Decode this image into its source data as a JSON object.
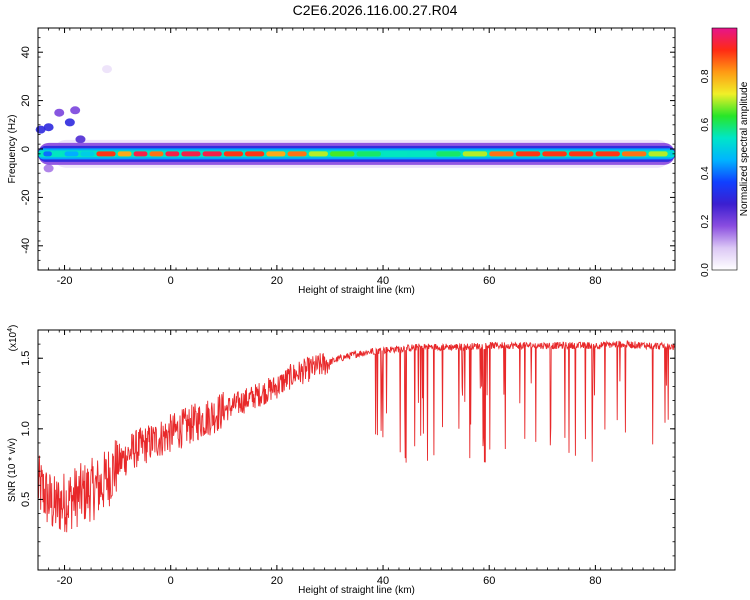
{
  "title": "C2E6.2026.116.00.27.R04",
  "chart_data": [
    {
      "type": "heatmap",
      "xlabel": "Height of straight line (km)",
      "ylabel": "Frequency (Hz)",
      "xlim": [
        -25,
        95
      ],
      "ylim": [
        -50,
        50
      ],
      "xticks": [
        -20,
        0,
        20,
        40,
        60,
        80
      ],
      "yticks": [
        -40,
        -20,
        0,
        20,
        40
      ],
      "colorbar": {
        "label": "Normalized spectral amplitude",
        "range": [
          0,
          1
        ],
        "ticks": [
          "0.0",
          "0.2",
          "0.4",
          "0.6",
          "0.8"
        ],
        "tick_values": [
          0,
          0.2,
          0.4,
          0.6,
          0.8
        ],
        "colors": [
          "#ffffff",
          "#dcc8f5",
          "#8a4de0",
          "#3b1fd0",
          "#1040ff",
          "#00b4ff",
          "#00e6c8",
          "#28e628",
          "#f0f028",
          "#ff9a14",
          "#ff2a14",
          "#e6148c"
        ]
      },
      "band": {
        "center_frequency": -2,
        "segments": [
          {
            "x": -24,
            "value": 0.4
          },
          {
            "x": -22,
            "value": 0.55
          },
          {
            "x": -20,
            "value": 0.45
          },
          {
            "x": -17,
            "value": 0.5
          },
          {
            "x": -14,
            "value": 0.9
          },
          {
            "x": -10,
            "value": 0.8
          },
          {
            "x": -7,
            "value": 0.95
          },
          {
            "x": -4,
            "value": 0.85
          },
          {
            "x": -1,
            "value": 0.95
          },
          {
            "x": 2,
            "value": 0.95
          },
          {
            "x": 6,
            "value": 0.95
          },
          {
            "x": 10,
            "value": 0.9
          },
          {
            "x": 14,
            "value": 0.9
          },
          {
            "x": 18,
            "value": 0.8
          },
          {
            "x": 22,
            "value": 0.85
          },
          {
            "x": 26,
            "value": 0.7
          },
          {
            "x": 30,
            "value": 0.65
          },
          {
            "x": 35,
            "value": 0.6
          },
          {
            "x": 40,
            "value": 0.55
          },
          {
            "x": 45,
            "value": 0.55
          },
          {
            "x": 50,
            "value": 0.6
          },
          {
            "x": 55,
            "value": 0.7
          },
          {
            "x": 60,
            "value": 0.85
          },
          {
            "x": 65,
            "value": 0.9
          },
          {
            "x": 70,
            "value": 0.9
          },
          {
            "x": 75,
            "value": 0.9
          },
          {
            "x": 80,
            "value": 0.9
          },
          {
            "x": 85,
            "value": 0.85
          },
          {
            "x": 90,
            "value": 0.7
          },
          {
            "x": 94,
            "value": 0.5
          }
        ],
        "scattered_blobs": [
          {
            "x": -24.5,
            "y": 8,
            "value": 0.3
          },
          {
            "x": -23,
            "y": 9,
            "value": 0.3
          },
          {
            "x": -21,
            "y": 15,
            "value": 0.2
          },
          {
            "x": -19,
            "y": 11,
            "value": 0.3
          },
          {
            "x": -18,
            "y": 16,
            "value": 0.2
          },
          {
            "x": -17,
            "y": 4,
            "value": 0.25
          },
          {
            "x": -12,
            "y": 33,
            "value": 0.05
          },
          {
            "x": -23,
            "y": -8,
            "value": 0.15
          }
        ]
      }
    },
    {
      "type": "line",
      "xlabel": "Height of straight line (km)",
      "ylabel": "SNR (10 * v/v)",
      "y_multiplier_label": "(x10",
      "y_multiplier_exponent": "4",
      "y_multiplier_close": ")",
      "xlim": [
        -25,
        95
      ],
      "ylim": [
        0,
        1.7
      ],
      "xticks": [
        -20,
        0,
        20,
        40,
        60,
        80
      ],
      "yticks": [
        0.5,
        1.0,
        1.5
      ],
      "ytick_labels": [
        "0.5",
        "1.0",
        "1.5"
      ],
      "color": "#e8282a",
      "series": [
        {
          "x": [
            -25,
            -22,
            -19,
            -16,
            -13,
            -10,
            -7,
            -4,
            -1,
            2,
            5,
            8,
            11,
            14,
            17,
            20,
            23,
            26,
            29,
            32,
            35,
            38,
            41,
            44,
            47,
            50,
            55,
            60,
            65,
            70,
            75,
            80,
            85,
            90,
            95
          ],
          "values": [
            0.6,
            0.45,
            0.5,
            0.55,
            0.6,
            0.75,
            0.85,
            0.9,
            0.95,
            1.0,
            1.05,
            1.1,
            1.15,
            1.2,
            1.25,
            1.3,
            1.38,
            1.42,
            1.46,
            1.5,
            1.53,
            1.55,
            1.56,
            1.57,
            1.58,
            1.58,
            1.58,
            1.59,
            1.59,
            1.59,
            1.59,
            1.59,
            1.6,
            1.59,
            1.58
          ]
        }
      ]
    }
  ]
}
